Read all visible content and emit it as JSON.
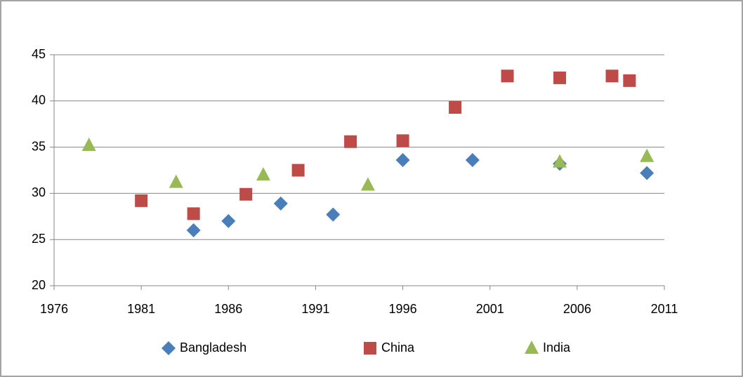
{
  "chart_data": {
    "type": "scatter",
    "xlim": [
      1976,
      2011
    ],
    "xticks": [
      1976,
      1981,
      1986,
      1991,
      1996,
      2001,
      2006,
      2011
    ],
    "ylim": [
      20,
      45
    ],
    "yticks": [
      20,
      25,
      30,
      35,
      40,
      45
    ],
    "grid": true,
    "legend": "bottom",
    "series": [
      {
        "name": "Bangladesh",
        "color": "#4a7ebb",
        "marker": "diamond",
        "x": [
          1984,
          1986,
          1989,
          1992,
          1996,
          2000,
          2005,
          2010
        ],
        "values": [
          26.0,
          27.0,
          28.9,
          27.7,
          33.6,
          33.6,
          33.2,
          32.2
        ]
      },
      {
        "name": "China",
        "color": "#be4b48",
        "marker": "square",
        "x": [
          1981,
          1984,
          1987,
          1990,
          1993,
          1996,
          1999,
          2002,
          2005,
          2008,
          2009
        ],
        "values": [
          29.2,
          27.8,
          29.9,
          32.5,
          35.6,
          35.7,
          39.3,
          42.7,
          42.5,
          42.7,
          42.2
        ]
      },
      {
        "name": "India",
        "color": "#98b954",
        "marker": "triangle",
        "x": [
          1978,
          1983,
          1988,
          1994,
          2005,
          2010
        ],
        "values": [
          35.2,
          31.2,
          32.0,
          30.9,
          33.4,
          34.0
        ]
      }
    ]
  }
}
